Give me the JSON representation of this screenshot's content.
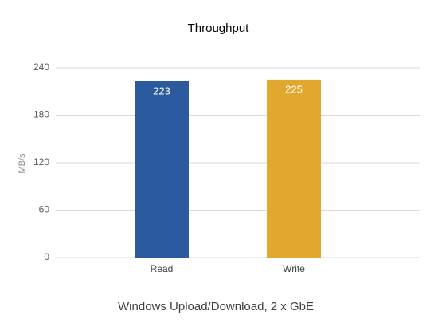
{
  "chart_data": {
    "type": "bar",
    "title": "Throughput",
    "categories": [
      "Read",
      "Write"
    ],
    "values": [
      223,
      225
    ],
    "colors": [
      "#2b5a9e",
      "#e0a82e"
    ],
    "y_label": "MB/s",
    "x_label": "Windows Upload/Download, 2 x GbE",
    "ylim": [
      0,
      240
    ],
    "yticks": [
      0,
      60,
      120,
      180,
      240
    ],
    "grid": true
  }
}
